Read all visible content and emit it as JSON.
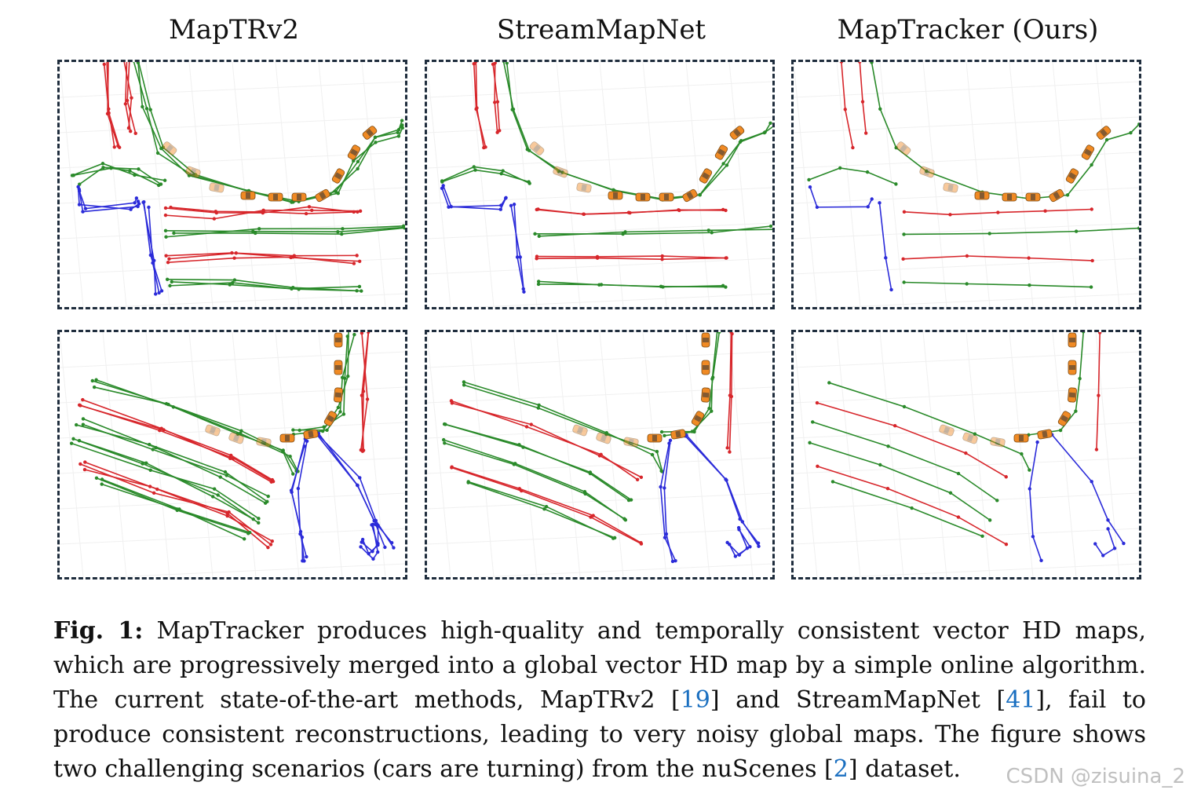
{
  "columns": [
    {
      "title": "MapTRv2"
    },
    {
      "title": "StreamMapNet"
    },
    {
      "title": "MapTracker (Ours)"
    }
  ],
  "colors": {
    "divider": "#d7262b",
    "boundary": "#2a8a2a",
    "crossing": "#2b2bd9",
    "car": "#f08a24",
    "border": "#1f2d3d",
    "citation": "#1a6fc0"
  },
  "caption": {
    "label": "Fig. 1:",
    "p1": " MapTracker produces high-quality and temporally consistent vector HD maps, which are progressively merged into a global vector HD map by a simple online algorithm. The current state-of-the-art methods, MapTRv2 [",
    "ref1": "19",
    "p2": "] and StreamMapNet [",
    "ref2": "41",
    "p3": "], fail to produce consistent reconstructions, leading to very noisy global maps. The figure shows two challenging scenarios (cars are turning) from the nuScenes [",
    "ref3": "2",
    "p4": "] dataset."
  },
  "watermark": "CSDN @zisuina_2"
}
